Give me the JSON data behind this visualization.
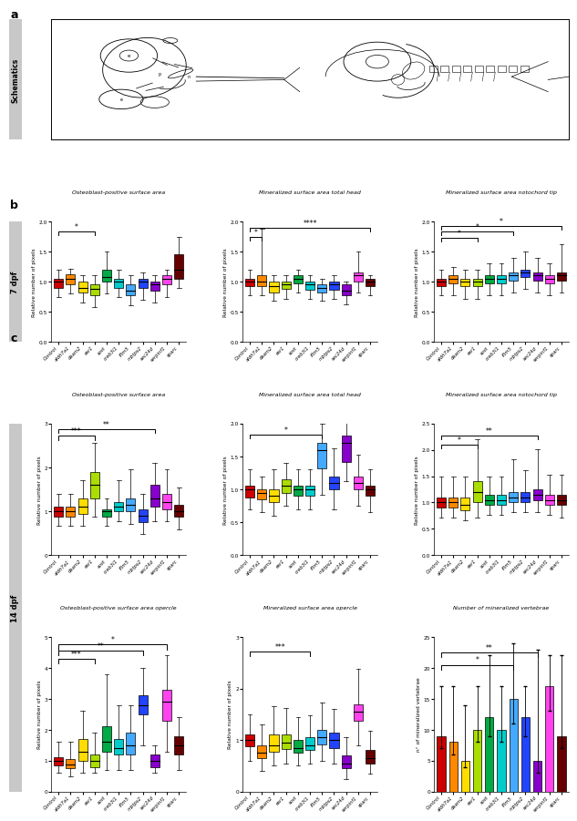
{
  "categories": [
    "Control",
    "aldh7a1",
    "daam2",
    "esr1",
    "sost",
    "creb3l1",
    "iftm5",
    "mbtps2",
    "sec24d",
    "serpinf1",
    "sparc"
  ],
  "colors": [
    "#cc0000",
    "#ff8800",
    "#ffdd00",
    "#aadd00",
    "#00aa44",
    "#00cccc",
    "#44aaff",
    "#2244ff",
    "#8800cc",
    "#ff44ee",
    "#660000"
  ],
  "b_titles": [
    "Osteoblast-positive surface area",
    "Mineralized surface area total head",
    "Mineralized surface area notochord tip"
  ],
  "c_row1_titles": [
    "Osteoblast-positive surface area",
    "Mineralized surface area total head",
    "Mineralized surface area notochord tip"
  ],
  "c_row2_titles": [
    "Osteoblast-positive surface area opercle",
    "Mineralized surface area opercle",
    "Number of mineralized vertebrae"
  ],
  "ylabel_pixels": "Relative number of pixels",
  "ylabel_vertebrae": "n° of mineralized vertebrae",
  "b1_data": {
    "medians": [
      1.0,
      1.05,
      0.9,
      0.88,
      1.08,
      1.0,
      0.85,
      1.0,
      0.95,
      1.05,
      1.2
    ],
    "q1": [
      0.9,
      0.95,
      0.82,
      0.78,
      1.0,
      0.9,
      0.78,
      0.9,
      0.85,
      0.95,
      1.05
    ],
    "q3": [
      1.05,
      1.12,
      1.0,
      0.95,
      1.2,
      1.05,
      0.95,
      1.05,
      1.0,
      1.1,
      1.45
    ],
    "whislo": [
      0.75,
      0.8,
      0.65,
      0.58,
      0.8,
      0.75,
      0.6,
      0.7,
      0.65,
      0.75,
      0.9
    ],
    "whishi": [
      1.2,
      1.22,
      1.1,
      1.1,
      1.5,
      1.2,
      1.1,
      1.15,
      1.1,
      1.2,
      1.75
    ]
  },
  "b2_data": {
    "medians": [
      1.0,
      1.0,
      0.92,
      0.95,
      1.05,
      0.95,
      0.9,
      0.95,
      0.85,
      1.1,
      1.0
    ],
    "q1": [
      0.92,
      0.92,
      0.82,
      0.88,
      0.97,
      0.87,
      0.82,
      0.87,
      0.77,
      1.0,
      0.92
    ],
    "q3": [
      1.05,
      1.1,
      1.0,
      1.0,
      1.1,
      1.0,
      0.95,
      1.0,
      0.95,
      1.15,
      1.05
    ],
    "whislo": [
      0.78,
      0.78,
      0.68,
      0.72,
      0.82,
      0.72,
      0.68,
      0.72,
      0.62,
      0.82,
      0.78
    ],
    "whishi": [
      1.2,
      1.88,
      1.1,
      1.1,
      1.2,
      1.1,
      1.05,
      1.1,
      1.0,
      1.5,
      1.1
    ]
  },
  "b3_data": {
    "medians": [
      1.0,
      1.05,
      1.0,
      1.0,
      1.05,
      1.05,
      1.1,
      1.15,
      1.1,
      1.05,
      1.1
    ],
    "q1": [
      0.92,
      0.97,
      0.92,
      0.92,
      0.97,
      0.97,
      1.02,
      1.07,
      1.02,
      0.97,
      1.02
    ],
    "q3": [
      1.05,
      1.1,
      1.05,
      1.05,
      1.1,
      1.1,
      1.15,
      1.2,
      1.15,
      1.1,
      1.15
    ],
    "whislo": [
      0.78,
      0.78,
      0.72,
      0.72,
      0.78,
      0.78,
      0.82,
      0.88,
      0.82,
      0.78,
      0.82
    ],
    "whishi": [
      1.2,
      1.25,
      1.2,
      1.2,
      1.3,
      1.3,
      1.4,
      1.5,
      1.4,
      1.3,
      1.62
    ]
  },
  "c1_data": {
    "medians": [
      1.0,
      1.0,
      1.1,
      1.6,
      1.0,
      1.1,
      1.15,
      0.9,
      1.3,
      1.2,
      1.0
    ],
    "q1": [
      0.88,
      0.88,
      0.95,
      1.3,
      0.88,
      1.0,
      1.0,
      0.75,
      1.1,
      1.05,
      0.88
    ],
    "q3": [
      1.1,
      1.1,
      1.3,
      1.9,
      1.05,
      1.2,
      1.3,
      1.05,
      1.6,
      1.4,
      1.15
    ],
    "whislo": [
      0.68,
      0.68,
      0.68,
      0.88,
      0.68,
      0.78,
      0.72,
      0.48,
      0.78,
      0.78,
      0.58
    ],
    "whishi": [
      1.4,
      1.4,
      1.7,
      2.55,
      1.3,
      1.7,
      1.95,
      1.4,
      2.1,
      1.95,
      1.55
    ]
  },
  "c2_data": {
    "medians": [
      1.0,
      0.95,
      0.9,
      1.05,
      1.0,
      1.0,
      1.6,
      1.1,
      1.7,
      1.1,
      1.0
    ],
    "q1": [
      0.88,
      0.85,
      0.8,
      0.95,
      0.9,
      0.9,
      1.32,
      1.0,
      1.42,
      1.0,
      0.9
    ],
    "q3": [
      1.05,
      1.0,
      1.0,
      1.15,
      1.05,
      1.05,
      1.7,
      1.2,
      1.82,
      1.2,
      1.05
    ],
    "whislo": [
      0.7,
      0.65,
      0.6,
      0.75,
      0.7,
      0.7,
      0.92,
      0.7,
      1.12,
      0.75,
      0.65
    ],
    "whishi": [
      1.3,
      1.2,
      1.3,
      1.4,
      1.3,
      1.3,
      2.0,
      1.62,
      2.42,
      1.52,
      1.3
    ]
  },
  "c3_data": {
    "medians": [
      1.0,
      1.0,
      0.95,
      1.2,
      1.05,
      1.05,
      1.1,
      1.1,
      1.15,
      1.05,
      1.05
    ],
    "q1": [
      0.9,
      0.9,
      0.85,
      1.0,
      0.95,
      0.95,
      1.0,
      1.0,
      1.05,
      0.95,
      0.95
    ],
    "q3": [
      1.1,
      1.1,
      1.1,
      1.4,
      1.15,
      1.15,
      1.2,
      1.2,
      1.25,
      1.15,
      1.15
    ],
    "whislo": [
      0.72,
      0.72,
      0.67,
      0.72,
      0.77,
      0.77,
      0.82,
      0.82,
      0.82,
      0.77,
      0.72
    ],
    "whishi": [
      1.5,
      1.5,
      1.5,
      2.2,
      1.5,
      1.5,
      1.82,
      1.62,
      2.02,
      1.52,
      1.52
    ]
  },
  "c4_data": {
    "medians": [
      1.0,
      0.88,
      1.3,
      1.0,
      1.6,
      1.4,
      1.5,
      2.8,
      1.0,
      2.9,
      1.5
    ],
    "q1": [
      0.85,
      0.75,
      1.0,
      0.8,
      1.3,
      1.2,
      1.2,
      2.5,
      0.8,
      2.3,
      1.2
    ],
    "q3": [
      1.1,
      1.05,
      1.7,
      1.2,
      2.1,
      1.7,
      1.9,
      3.1,
      1.2,
      3.3,
      1.8
    ],
    "whislo": [
      0.6,
      0.5,
      0.6,
      0.6,
      0.7,
      0.7,
      0.7,
      1.5,
      0.6,
      1.3,
      0.7
    ],
    "whishi": [
      1.6,
      1.6,
      2.6,
      1.9,
      3.8,
      2.8,
      2.8,
      4.0,
      1.5,
      4.4,
      2.4
    ]
  },
  "c5_data": {
    "medians": [
      1.0,
      0.75,
      0.9,
      0.95,
      0.85,
      0.9,
      1.05,
      1.0,
      0.55,
      1.55,
      0.65
    ],
    "q1": [
      0.88,
      0.65,
      0.78,
      0.82,
      0.75,
      0.8,
      0.92,
      0.85,
      0.45,
      1.38,
      0.55
    ],
    "q3": [
      1.1,
      0.9,
      1.1,
      1.1,
      1.0,
      1.05,
      1.2,
      1.15,
      0.7,
      1.7,
      0.8
    ],
    "whislo": [
      0.6,
      0.4,
      0.5,
      0.55,
      0.5,
      0.55,
      0.6,
      0.55,
      0.25,
      0.9,
      0.35
    ],
    "whishi": [
      1.5,
      1.3,
      1.65,
      1.62,
      1.45,
      1.48,
      1.72,
      1.6,
      1.05,
      2.38,
      1.18
    ]
  },
  "c6_bars": [
    9,
    8,
    5,
    10,
    12,
    10,
    15,
    12,
    5,
    17,
    9
  ],
  "c6_errors_low": [
    2,
    2,
    1,
    2,
    3,
    2,
    4,
    3,
    2,
    4,
    2
  ],
  "c6_errors_high": [
    8,
    9,
    9,
    7,
    10,
    7,
    9,
    5,
    18,
    5,
    13
  ]
}
